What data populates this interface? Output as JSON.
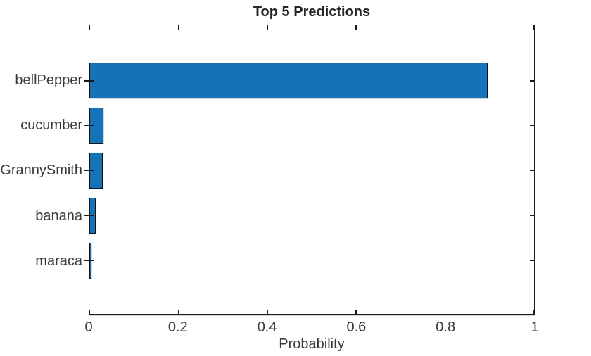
{
  "figure": {
    "title": "Top 5 Predictions",
    "xlabel": "Probability"
  },
  "chart_data": {
    "type": "bar",
    "orientation": "horizontal",
    "title": "Top 5 Predictions",
    "xlabel": "Probability",
    "ylabel": "",
    "categories": [
      "bellPepper",
      "cucumber",
      "GrannySmith",
      "banana",
      "maraca"
    ],
    "values": [
      0.895,
      0.031,
      0.03,
      0.015,
      0.005
    ],
    "xlim": [
      0,
      1
    ],
    "xticks": [
      0,
      0.2,
      0.4,
      0.6,
      0.8,
      1
    ],
    "xtick_labels": [
      "0",
      "0.2",
      "0.4",
      "0.6",
      "0.8",
      "1"
    ],
    "grid": false,
    "legend": "none",
    "bar_color": "#1572b9",
    "bar_edge_color": "#111111"
  },
  "colors": {
    "background": "#ffffff",
    "axis": "#1a1a1a",
    "text": "#3a3a3a",
    "title_text": "#262626",
    "bar_fill": "#1572b9"
  }
}
